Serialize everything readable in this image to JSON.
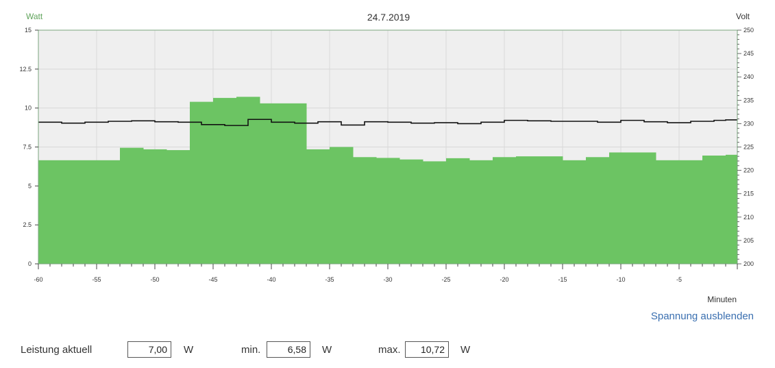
{
  "chart_data": {
    "type": "area",
    "title": "24.7.2019",
    "left_axis_label": "Watt",
    "right_axis_label": "Volt",
    "xlabel": "Minuten",
    "xlim": [
      -60,
      0
    ],
    "ylim_left": [
      0,
      15
    ],
    "ylim_right": [
      200,
      250
    ],
    "x_ticks": [
      -60,
      -55,
      -50,
      -45,
      -40,
      -35,
      -30,
      -25,
      -20,
      -15,
      -10,
      -5
    ],
    "x_tick_labels": [
      "-60",
      "-55",
      "-50",
      "-45",
      "-40",
      "-35",
      "-30",
      "-25",
      "-20",
      "-15",
      "-10",
      "-5"
    ],
    "y_left_ticks": [
      0,
      2.5,
      5,
      7.5,
      10,
      12.5,
      15
    ],
    "y_left_tick_labels": [
      "0",
      "2.5",
      "5",
      "7.5",
      "10",
      "12.5",
      "15"
    ],
    "y_right_ticks": [
      200,
      205,
      210,
      215,
      220,
      225,
      230,
      235,
      240,
      245,
      250
    ],
    "y_right_tick_labels": [
      "200",
      "205",
      "210",
      "215",
      "220",
      "225",
      "230",
      "235",
      "240",
      "245",
      "250"
    ],
    "grid": true,
    "series": [
      {
        "name": "Leistung",
        "axis": "left",
        "style": "step-area",
        "color": "#6cc463",
        "x": [
          -60,
          -53,
          -51,
          -49,
          -47,
          -45,
          -43,
          -41,
          -37,
          -35,
          -33,
          -31,
          -29,
          -27,
          -25,
          -23,
          -21,
          -19,
          -15,
          -13,
          -11,
          -7,
          -3,
          -1
        ],
        "values": [
          6.65,
          7.45,
          7.35,
          7.3,
          10.4,
          10.65,
          10.72,
          10.3,
          7.35,
          7.5,
          6.85,
          6.8,
          6.7,
          6.58,
          6.78,
          6.65,
          6.85,
          6.9,
          6.65,
          6.85,
          7.15,
          6.65,
          6.95,
          7.0
        ],
        "x_end": 0
      },
      {
        "name": "Spannung",
        "axis": "right",
        "style": "step-line",
        "color": "#111111",
        "x": [
          -60,
          -58,
          -56,
          -54,
          -52,
          -50,
          -48,
          -46,
          -44,
          -42,
          -40,
          -38,
          -36,
          -34,
          -32,
          -30,
          -28,
          -26,
          -24,
          -22,
          -20,
          -18,
          -16,
          -14,
          -12,
          -10,
          -8,
          -6,
          -4,
          -2,
          -1
        ],
        "values": [
          230.3,
          230.1,
          230.3,
          230.5,
          230.6,
          230.4,
          230.3,
          229.8,
          229.6,
          230.9,
          230.3,
          230.1,
          230.4,
          229.7,
          230.4,
          230.3,
          230.1,
          230.2,
          230.0,
          230.3,
          230.7,
          230.6,
          230.5,
          230.5,
          230.3,
          230.7,
          230.4,
          230.2,
          230.5,
          230.7,
          230.8
        ],
        "x_end": 0
      }
    ]
  },
  "controls": {
    "toggle_voltage": "Spannung ausblenden"
  },
  "stats": {
    "current_label": "Leistung aktuell",
    "current_value": "7,00",
    "current_unit": "W",
    "min_label": "min.",
    "min_value": "6,58",
    "min_unit": "W",
    "max_label": "max.",
    "max_value": "10,72",
    "max_unit": "W"
  },
  "colors": {
    "plot_background": "#efefef",
    "grid": "#d8d8d8",
    "axis": "#7aa67e",
    "watt_label": "#5fa35a",
    "power_fill": "#6cc463",
    "voltage_line": "#111111",
    "link": "#3a6fb0"
  }
}
